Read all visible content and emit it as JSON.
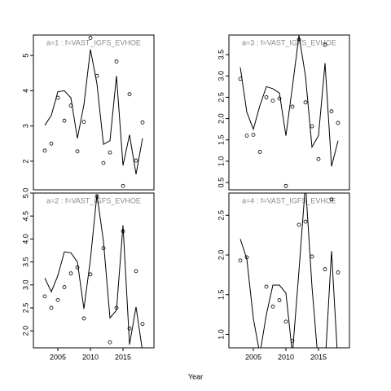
{
  "xlabel": "Year",
  "chart_data": [
    {
      "type": "line",
      "title": "a=1  :  f=VAST_IGFS_EVHOE",
      "x": [
        2003,
        2004,
        2005,
        2006,
        2007,
        2008,
        2009,
        2010,
        2011,
        2012,
        2013,
        2014,
        2015,
        2016,
        2017,
        2018
      ],
      "series": [
        {
          "color": "#000000",
          "style": "line",
          "values": [
            3.02,
            3.3,
            3.97,
            4.0,
            3.8,
            2.65,
            3.6,
            5.17,
            4.2,
            2.48,
            2.58,
            4.42,
            1.88,
            2.75,
            1.63,
            2.65
          ]
        },
        {
          "color": "#000000",
          "style": "points",
          "values": [
            2.3,
            2.5,
            3.8,
            3.15,
            3.58,
            2.28,
            3.12,
            5.5,
            4.42,
            1.95,
            2.25,
            4.83,
            1.3,
            3.9,
            2.02,
            3.1
          ]
        }
      ],
      "xlim": [
        2001.25,
        2019.75
      ],
      "ylim": [
        1.19,
        5.58
      ],
      "yticks": [
        2,
        3,
        4,
        5
      ]
    },
    {
      "type": "line",
      "title": "a=3  :  f=VAST_IGFS_EVHOE",
      "x": [
        2003,
        2004,
        2005,
        2006,
        2007,
        2008,
        2009,
        2010,
        2011,
        2012,
        2013,
        2014,
        2015,
        2016,
        2017,
        2018
      ],
      "series": [
        {
          "color": "#000000",
          "style": "line",
          "values": [
            3.2,
            2.15,
            1.75,
            2.3,
            2.75,
            2.7,
            2.6,
            1.6,
            2.75,
            3.95,
            3.0,
            1.33,
            1.6,
            3.3,
            0.88,
            1.48
          ]
        },
        {
          "color": "#000000",
          "style": "points",
          "values": [
            2.93,
            1.6,
            1.62,
            1.22,
            2.5,
            2.42,
            2.47,
            0.42,
            2.28,
            3.85,
            2.38,
            1.82,
            1.05,
            3.73,
            2.17,
            1.9
          ]
        }
      ],
      "xlim": [
        2001.25,
        2019.75
      ],
      "ylim": [
        0.33,
        3.96
      ],
      "yticks": [
        0.5,
        {
          "value": 1,
          "label": "1.0"
        },
        1.5,
        {
          "value": 2,
          "label": "2.0"
        },
        2.5,
        {
          "value": 3,
          "label": "3.0"
        },
        3.5
      ]
    },
    {
      "type": "line",
      "title": "a=2  :  f=VAST_IGFS_EVHOE",
      "x": [
        2003,
        2004,
        2005,
        2006,
        2007,
        2008,
        2009,
        2010,
        2011,
        2012,
        2013,
        2014,
        2015,
        2016,
        2017,
        2018
      ],
      "series": [
        {
          "color": "#000000",
          "style": "line",
          "values": [
            3.15,
            2.85,
            3.2,
            3.72,
            3.7,
            3.5,
            2.48,
            3.55,
            4.97,
            3.95,
            2.28,
            2.45,
            4.3,
            1.7,
            2.52,
            1.55
          ]
        },
        {
          "color": "#000000",
          "style": "points",
          "values": [
            2.75,
            2.5,
            2.67,
            2.95,
            3.25,
            3.38,
            2.27,
            3.23,
            4.93,
            3.8,
            1.75,
            2.5,
            4.17,
            2.05,
            3.3,
            2.15
          ]
        }
      ],
      "xlim": [
        2001.25,
        2019.75
      ],
      "ylim": [
        1.63,
        5.0
      ],
      "xticks": [
        2005,
        2010,
        2015
      ],
      "yticks": [
        {
          "value": 2,
          "label": "2.0"
        },
        2.5,
        {
          "value": 3,
          "label": "3.0"
        },
        3.5,
        {
          "value": 4,
          "label": "4.0"
        },
        4.5,
        {
          "value": 5,
          "label": "5.0"
        }
      ]
    },
    {
      "type": "line",
      "title": "a=4  :  f=VAST_IGFS_EVHOE",
      "x": [
        2003,
        2004,
        2005,
        2006,
        2007,
        2008,
        2009,
        2010,
        2011,
        2012,
        2013,
        2014,
        2015,
        2016,
        2017,
        2018
      ],
      "series": [
        {
          "color": "#000000",
          "style": "line",
          "values": [
            2.2,
            1.95,
            1.2,
            0.75,
            1.25,
            1.62,
            1.62,
            1.52,
            0.75,
            1.8,
            2.9,
            1.6,
            0.6,
            0.6,
            2.05,
            0.6
          ]
        },
        {
          "color": "#000000",
          "style": "points",
          "values": [
            1.93,
            1.97,
            null,
            null,
            1.6,
            1.35,
            1.43,
            1.16,
            0.92,
            2.38,
            2.42,
            1.98,
            null,
            1.82,
            2.7,
            1.78
          ]
        }
      ],
      "xlim": [
        2001.25,
        2019.75
      ],
      "ylim": [
        0.83,
        2.78
      ],
      "xticks": [
        2005,
        2010,
        2015
      ],
      "yticks": [
        {
          "value": 1,
          "label": "1.0"
        },
        1.5,
        {
          "value": 2,
          "label": "2.0"
        },
        2.5
      ]
    }
  ]
}
